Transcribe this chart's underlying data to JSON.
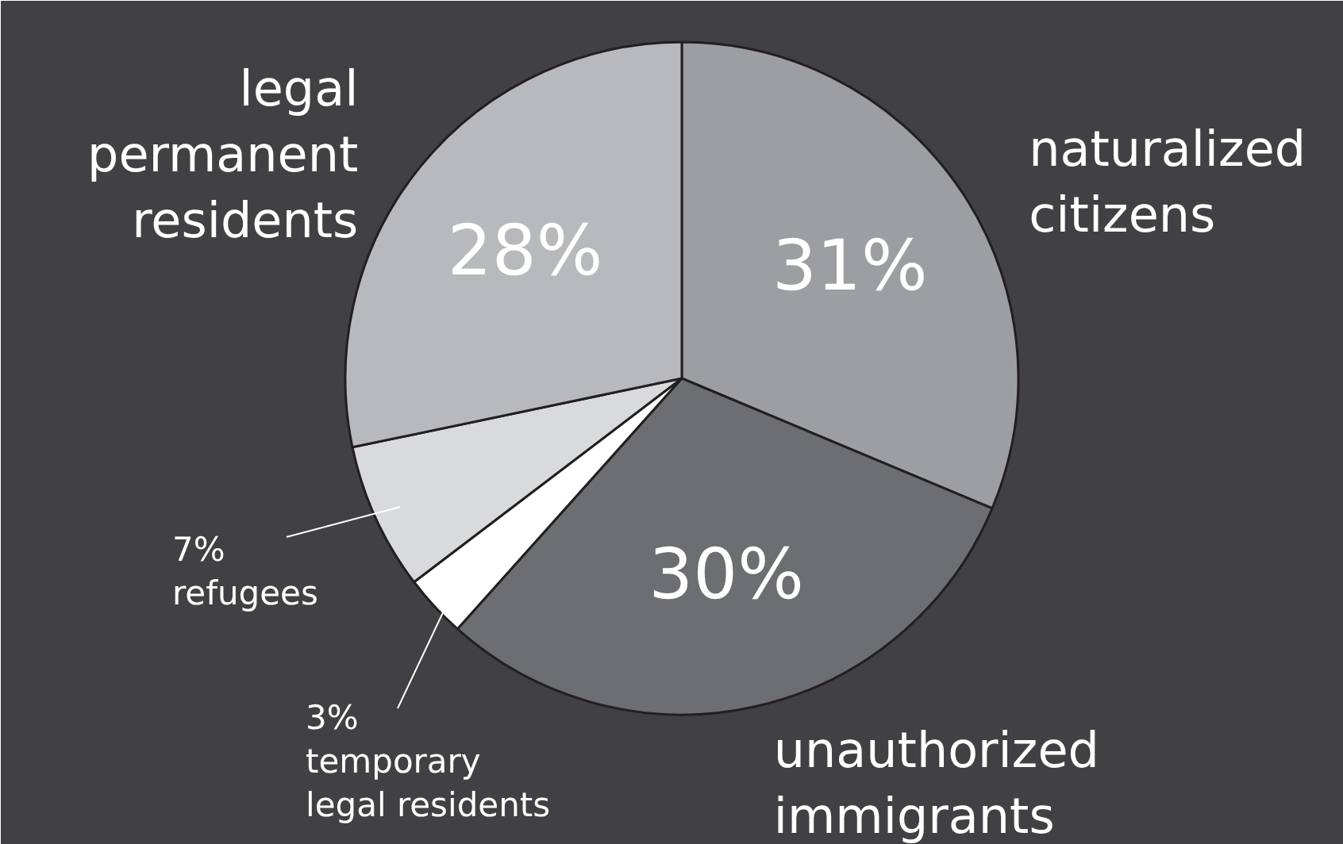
{
  "chart_data": {
    "type": "pie",
    "categories": [
      "naturalized\ncitizens",
      "unauthorized\nimmigrants",
      "temporary\nlegal residents",
      "refugees",
      "legal\npermanent\nresidents"
    ],
    "values": [
      31,
      30,
      3,
      7,
      28
    ],
    "value_labels": [
      "31%",
      "30%",
      "3%",
      "7%",
      "28%"
    ],
    "colors": [
      "#9d9ea1",
      "#6d6e71",
      "#ffffff",
      "#d9dadb",
      "#b8b9bc"
    ]
  }
}
